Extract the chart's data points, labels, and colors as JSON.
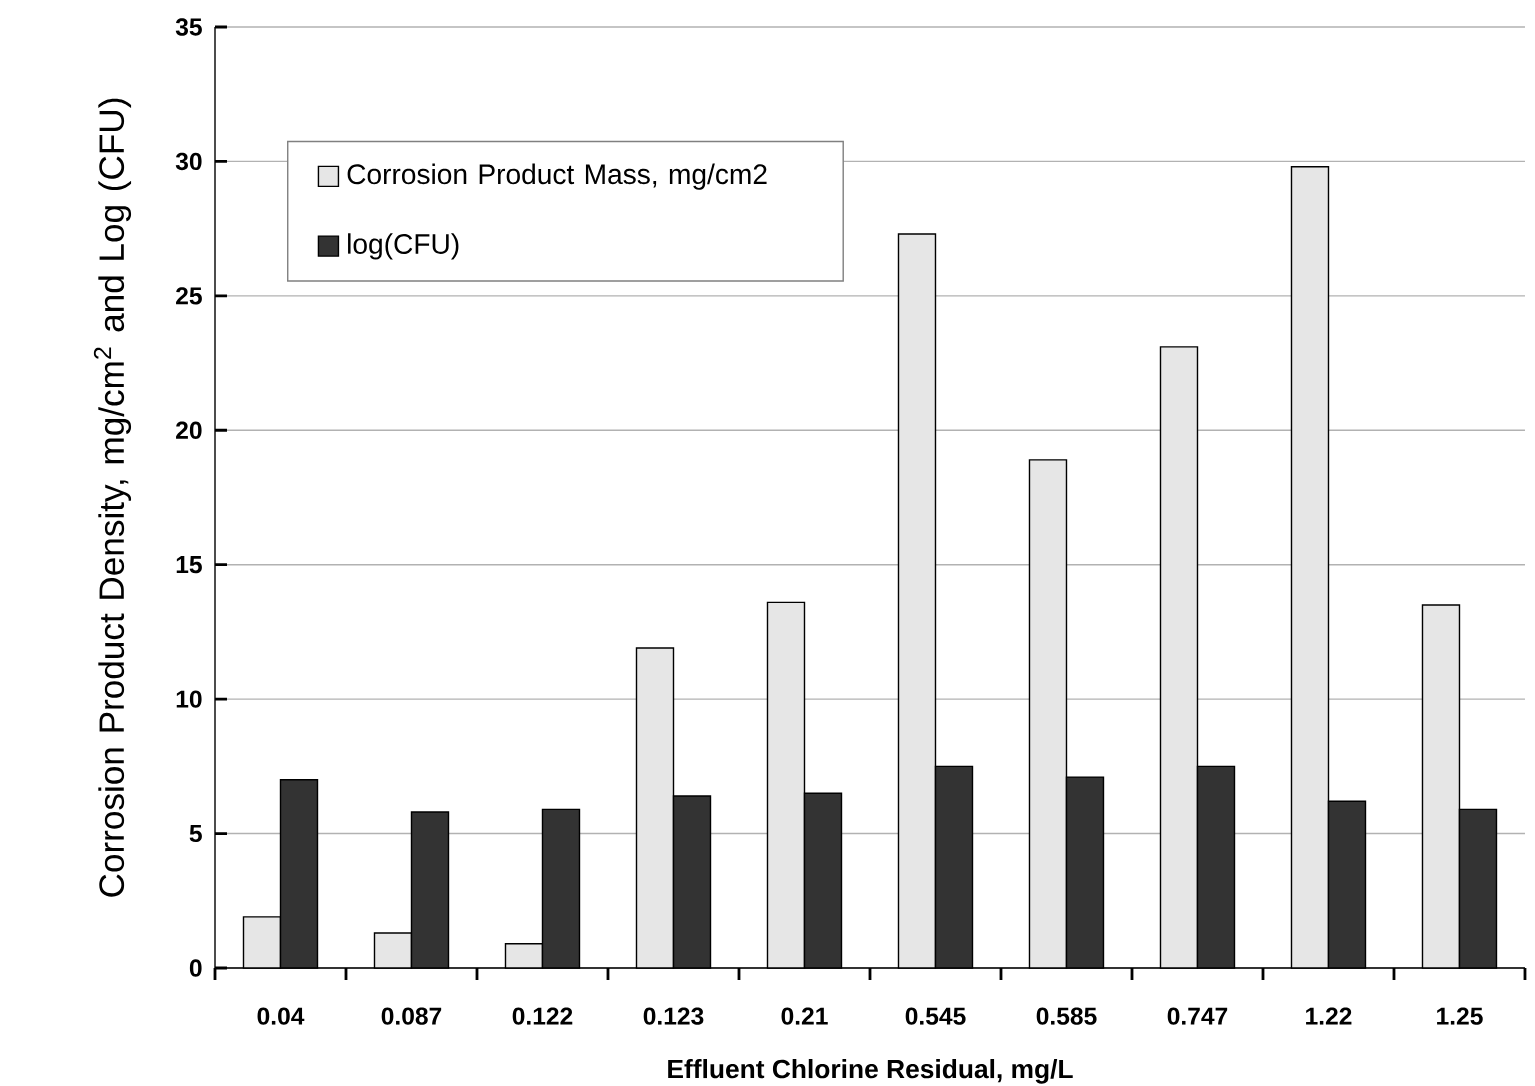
{
  "chart_data": {
    "type": "bar",
    "xlabel": "Effluent Chlorine Residual, mg/L",
    "ylabel": "Corrosion Product Density, mg/cm$^{2}$ and Log (CFU)",
    "categories": [
      "0.04",
      "0.087",
      "0.122",
      "0.123",
      "0.21",
      "0.545",
      "0.585",
      "0.747",
      "1.22",
      "1.25"
    ],
    "series": [
      {
        "name": "Corrosion Product Mass, mg/cm2",
        "color": "#e6e6e6",
        "values": [
          1.9,
          1.3,
          0.9,
          11.9,
          13.6,
          27.3,
          18.9,
          23.1,
          29.8,
          13.5
        ]
      },
      {
        "name": "log(CFU)",
        "color": "#333333",
        "values": [
          7.0,
          5.8,
          5.9,
          6.4,
          6.5,
          7.5,
          7.1,
          7.5,
          6.2,
          5.9
        ]
      }
    ],
    "ylim": [
      0,
      35
    ],
    "yticks": [
      0,
      5,
      10,
      15,
      20,
      25,
      30,
      35
    ],
    "grid": "y",
    "legend": "top left"
  }
}
